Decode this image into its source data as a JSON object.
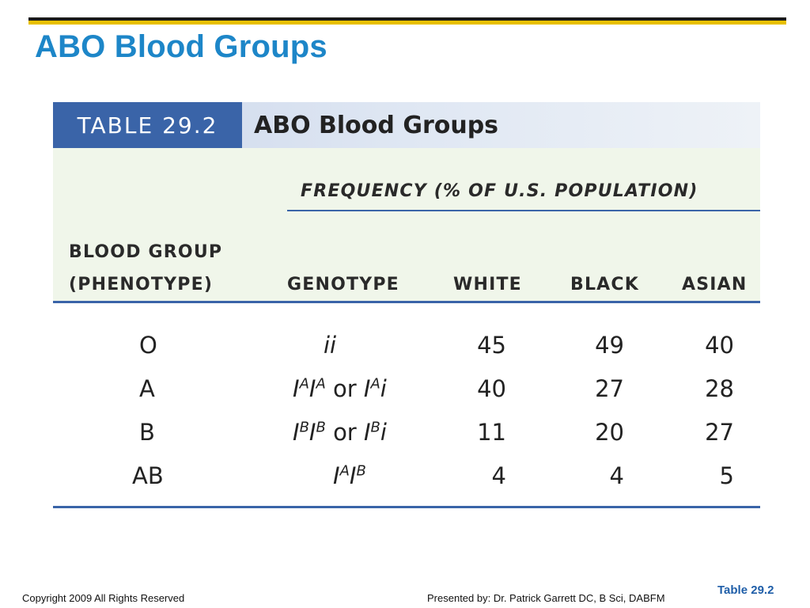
{
  "slide": {
    "title": "ABO Blood Groups",
    "footer_left": "Copyright 2009 All Rights Reserved",
    "footer_center": "Presented by: Dr. Patrick Garrett DC, B Sci, DABFM",
    "footer_right": "Table 29.2"
  },
  "table": {
    "number": "TABLE 29.2",
    "caption": "ABO Blood Groups",
    "frequency_header": "FREQUENCY (% OF U.S. POPULATION)",
    "col_group_line1": "BLOOD GROUP",
    "col_group_line2": "(PHENOTYPE)",
    "col_genotype": "GENOTYPE",
    "col_white": "WHITE",
    "col_black": "BLACK",
    "col_asian": "ASIAN",
    "genotype_or": "or",
    "rows": [
      {
        "phenotype": "O",
        "white": "45",
        "black": "49",
        "asian": "40"
      },
      {
        "phenotype": "A",
        "white": "40",
        "black": "27",
        "asian": "28"
      },
      {
        "phenotype": "B",
        "white": "11",
        "black": "20",
        "asian": "27"
      },
      {
        "phenotype": "AB",
        "white": "4",
        "black": "4",
        "asian": "5"
      }
    ],
    "genotypes": {
      "O": "ii",
      "A_base": "I",
      "A_sup": "A",
      "A_i": "i",
      "B_base": "I",
      "B_sup": "B",
      "B_i": "i",
      "AB_base": "I",
      "AB_sup1": "A",
      "AB_sup2": "B"
    }
  }
}
